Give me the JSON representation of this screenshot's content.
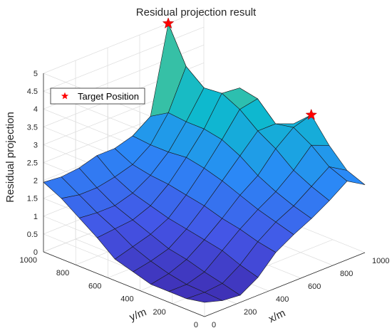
{
  "chart_data": {
    "type": "surface3d",
    "title": "Residual projection result",
    "xlabel": "x/m",
    "ylabel": "y/m",
    "zlabel": "Residual projection",
    "xlim": [
      0,
      1000
    ],
    "ylim": [
      0,
      1000
    ],
    "zlim": [
      0,
      5
    ],
    "x_ticks": [
      "0",
      "200",
      "400",
      "600",
      "800",
      "1000"
    ],
    "y_ticks": [
      "0",
      "200",
      "400",
      "600",
      "800",
      "1000"
    ],
    "z_ticks": [
      "0",
      "0.5",
      "1",
      "1.5",
      "2",
      "2.5",
      "3",
      "3.5",
      "4",
      "4.5",
      "5"
    ],
    "grid": true,
    "colormap": "parula",
    "legend": {
      "label": "Target Position",
      "marker": "star",
      "color": "#ff0000",
      "placement": "top-left"
    },
    "grid_x": [
      0,
      111,
      222,
      333,
      444,
      556,
      667,
      778,
      889,
      1000
    ],
    "grid_y": [
      0,
      111,
      222,
      333,
      444,
      556,
      667,
      778,
      889,
      1000
    ],
    "z_values": [
      [
        0.4,
        0.25,
        0.2,
        0.5,
        1.0,
        1.3,
        1.55,
        1.85,
        2.2,
        1.9
      ],
      [
        0.3,
        0.28,
        0.33,
        0.65,
        1.1,
        1.45,
        1.7,
        2.05,
        2.4,
        2.1
      ],
      [
        0.3,
        0.3,
        0.45,
        0.85,
        1.25,
        1.6,
        1.9,
        2.3,
        2.8,
        2.6
      ],
      [
        0.3,
        0.4,
        0.6,
        0.95,
        1.35,
        1.8,
        2.15,
        2.7,
        3.1,
        3.25
      ],
      [
        0.45,
        0.55,
        0.7,
        1.05,
        1.5,
        2.0,
        2.5,
        3.0,
        3.0,
        2.8
      ],
      [
        0.6,
        0.75,
        0.9,
        1.15,
        1.6,
        2.15,
        2.75,
        3.4,
        3.5,
        2.5
      ],
      [
        1.0,
        1.05,
        1.1,
        1.3,
        1.7,
        2.25,
        2.85,
        3.65,
        3.6,
        2.4
      ],
      [
        1.35,
        1.3,
        1.3,
        1.45,
        1.75,
        2.2,
        2.85,
        3.6,
        3.2,
        2.2
      ],
      [
        1.7,
        1.6,
        1.6,
        1.7,
        1.85,
        2.2,
        2.9,
        4.0,
        2.8,
        2.05
      ],
      [
        1.95,
        1.9,
        1.95,
        2.1,
        2.1,
        2.25,
        2.6,
        5.0,
        2.5,
        1.95
      ]
    ],
    "targets": [
      {
        "x": 778,
        "y": 1000,
        "z": 5.0
      },
      {
        "x": 1000,
        "y": 333,
        "z": 3.25
      }
    ]
  }
}
